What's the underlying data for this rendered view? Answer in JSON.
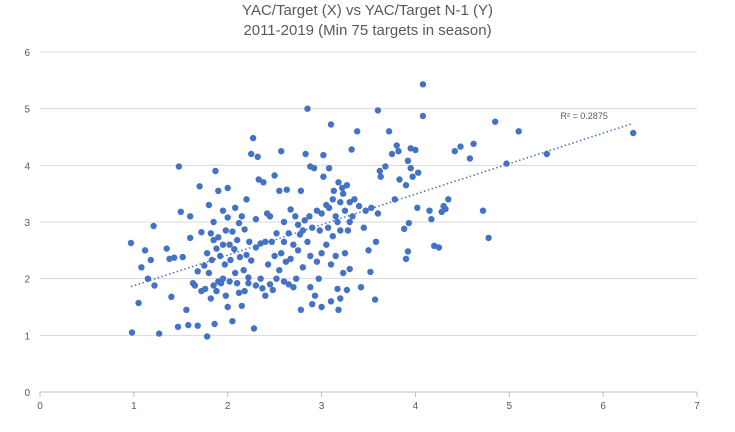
{
  "chart_data": {
    "type": "scatter",
    "title_lines": [
      "YAC/Target (X) vs YAC/Target N-1 (Y)",
      "2011-2019 (Min 75 targets in season)"
    ],
    "xlabel": "",
    "ylabel": "",
    "xlim": [
      0,
      7
    ],
    "ylim": [
      0,
      6
    ],
    "x_ticks": [
      0,
      1,
      2,
      3,
      4,
      5,
      6,
      7
    ],
    "y_ticks": [
      0,
      1,
      2,
      3,
      4,
      5,
      6
    ],
    "grid": "horizontal",
    "legend": "none",
    "marker_color": "#4472C4",
    "trendline": {
      "type": "linear",
      "style": "dotted",
      "start": [
        0.97,
        1.86
      ],
      "end": [
        6.3,
        4.73
      ],
      "r2_label": "R² = 0.2875"
    },
    "points": [
      [
        0.97,
        2.63
      ],
      [
        0.98,
        1.05
      ],
      [
        1.05,
        1.57
      ],
      [
        1.08,
        2.2
      ],
      [
        1.12,
        2.5
      ],
      [
        1.15,
        2.0
      ],
      [
        1.18,
        2.33
      ],
      [
        1.21,
        2.93
      ],
      [
        1.22,
        1.88
      ],
      [
        1.27,
        1.03
      ],
      [
        1.35,
        2.53
      ],
      [
        1.38,
        2.35
      ],
      [
        1.4,
        1.68
      ],
      [
        1.43,
        2.37
      ],
      [
        1.47,
        1.15
      ],
      [
        1.48,
        3.98
      ],
      [
        1.5,
        3.18
      ],
      [
        1.52,
        2.38
      ],
      [
        1.56,
        1.45
      ],
      [
        1.58,
        1.18
      ],
      [
        1.6,
        2.72
      ],
      [
        1.6,
        3.1
      ],
      [
        1.63,
        1.92
      ],
      [
        1.65,
        1.88
      ],
      [
        1.68,
        2.13
      ],
      [
        1.68,
        1.17
      ],
      [
        1.7,
        3.63
      ],
      [
        1.72,
        2.82
      ],
      [
        1.72,
        1.78
      ],
      [
        1.75,
        2.23
      ],
      [
        1.76,
        1.82
      ],
      [
        1.78,
        0.98
      ],
      [
        1.78,
        2.45
      ],
      [
        1.8,
        2.1
      ],
      [
        1.8,
        3.3
      ],
      [
        1.82,
        1.65
      ],
      [
        1.82,
        2.8
      ],
      [
        1.83,
        2.33
      ],
      [
        1.85,
        1.88
      ],
      [
        1.85,
        2.68
      ],
      [
        1.85,
        3.0
      ],
      [
        1.86,
        1.2
      ],
      [
        1.87,
        3.9
      ],
      [
        1.88,
        1.78
      ],
      [
        1.88,
        2.53
      ],
      [
        1.9,
        1.95
      ],
      [
        1.9,
        2.73
      ],
      [
        1.9,
        3.55
      ],
      [
        1.92,
        2.4
      ],
      [
        1.93,
        1.92
      ],
      [
        1.95,
        2.0
      ],
      [
        1.95,
        2.6
      ],
      [
        1.95,
        3.2
      ],
      [
        1.97,
        2.25
      ],
      [
        1.98,
        1.7
      ],
      [
        1.98,
        2.85
      ],
      [
        2.0,
        1.5
      ],
      [
        2.0,
        3.08
      ],
      [
        2.0,
        3.6
      ],
      [
        2.02,
        2.6
      ],
      [
        2.02,
        1.95
      ],
      [
        2.03,
        2.33
      ],
      [
        2.05,
        1.25
      ],
      [
        2.05,
        2.83
      ],
      [
        2.07,
        2.52
      ],
      [
        2.08,
        3.25
      ],
      [
        2.08,
        2.1
      ],
      [
        2.1,
        1.92
      ],
      [
        2.1,
        2.68
      ],
      [
        2.12,
        1.75
      ],
      [
        2.12,
        2.98
      ],
      [
        2.13,
        2.38
      ],
      [
        2.15,
        1.52
      ],
      [
        2.15,
        3.1
      ],
      [
        2.17,
        2.15
      ],
      [
        2.18,
        2.87
      ],
      [
        2.18,
        1.78
      ],
      [
        2.2,
        2.42
      ],
      [
        2.2,
        3.4
      ],
      [
        2.22,
        2.02
      ],
      [
        2.22,
        1.92
      ],
      [
        2.23,
        2.65
      ],
      [
        2.25,
        2.32
      ],
      [
        2.25,
        4.2
      ],
      [
        2.27,
        4.48
      ],
      [
        2.28,
        1.12
      ],
      [
        2.3,
        1.88
      ],
      [
        2.3,
        2.55
      ],
      [
        2.3,
        3.05
      ],
      [
        2.32,
        4.15
      ],
      [
        2.33,
        3.75
      ],
      [
        2.35,
        2.0
      ],
      [
        2.35,
        2.62
      ],
      [
        2.37,
        1.83
      ],
      [
        2.38,
        3.7
      ],
      [
        2.4,
        1.7
      ],
      [
        2.4,
        2.65
      ],
      [
        2.42,
        3.15
      ],
      [
        2.43,
        2.25
      ],
      [
        2.45,
        1.9
      ],
      [
        2.45,
        3.1
      ],
      [
        2.47,
        2.65
      ],
      [
        2.48,
        1.8
      ],
      [
        2.5,
        2.4
      ],
      [
        2.5,
        3.82
      ],
      [
        2.52,
        2.0
      ],
      [
        2.52,
        2.8
      ],
      [
        2.55,
        2.15
      ],
      [
        2.55,
        3.55
      ],
      [
        2.57,
        2.45
      ],
      [
        2.57,
        4.25
      ],
      [
        2.6,
        1.95
      ],
      [
        2.6,
        2.65
      ],
      [
        2.6,
        3.0
      ],
      [
        2.62,
        2.3
      ],
      [
        2.63,
        3.57
      ],
      [
        2.65,
        1.9
      ],
      [
        2.65,
        2.8
      ],
      [
        2.67,
        2.35
      ],
      [
        2.67,
        3.22
      ],
      [
        2.7,
        2.6
      ],
      [
        2.7,
        1.85
      ],
      [
        2.72,
        3.1
      ],
      [
        2.73,
        2.0
      ],
      [
        2.75,
        2.5
      ],
      [
        2.75,
        2.95
      ],
      [
        2.77,
        2.78
      ],
      [
        2.78,
        3.55
      ],
      [
        2.78,
        1.45
      ],
      [
        2.8,
        2.2
      ],
      [
        2.8,
        2.85
      ],
      [
        2.82,
        3.03
      ],
      [
        2.83,
        4.2
      ],
      [
        2.85,
        5.0
      ],
      [
        2.85,
        2.65
      ],
      [
        2.87,
        3.1
      ],
      [
        2.88,
        2.4
      ],
      [
        2.88,
        1.85
      ],
      [
        2.88,
        3.98
      ],
      [
        2.9,
        1.55
      ],
      [
        2.9,
        2.9
      ],
      [
        2.92,
        3.95
      ],
      [
        2.93,
        1.7
      ],
      [
        2.95,
        2.3
      ],
      [
        2.95,
        3.2
      ],
      [
        2.97,
        2.0
      ],
      [
        2.98,
        2.85
      ],
      [
        3.0,
        2.45
      ],
      [
        3.0,
        3.15
      ],
      [
        3.0,
        1.5
      ],
      [
        3.02,
        3.8
      ],
      [
        3.02,
        4.18
      ],
      [
        3.05,
        3.3
      ],
      [
        3.05,
        2.6
      ],
      [
        3.07,
        2.9
      ],
      [
        3.08,
        3.25
      ],
      [
        3.08,
        3.95
      ],
      [
        3.1,
        4.72
      ],
      [
        3.1,
        2.25
      ],
      [
        3.1,
        1.6
      ],
      [
        3.12,
        3.4
      ],
      [
        3.12,
        2.75
      ],
      [
        3.13,
        3.55
      ],
      [
        3.15,
        3.1
      ],
      [
        3.15,
        2.4
      ],
      [
        3.17,
        1.82
      ],
      [
        3.17,
        3.0
      ],
      [
        3.18,
        1.45
      ],
      [
        3.18,
        3.7
      ],
      [
        3.2,
        3.35
      ],
      [
        3.2,
        2.85
      ],
      [
        3.2,
        1.65
      ],
      [
        3.22,
        3.6
      ],
      [
        3.23,
        3.5
      ],
      [
        3.23,
        2.1
      ],
      [
        3.25,
        3.2
      ],
      [
        3.25,
        2.45
      ],
      [
        3.27,
        3.65
      ],
      [
        3.27,
        1.8
      ],
      [
        3.28,
        2.85
      ],
      [
        3.3,
        3.0
      ],
      [
        3.3,
        3.35
      ],
      [
        3.3,
        2.17
      ],
      [
        3.32,
        4.28
      ],
      [
        3.33,
        3.1
      ],
      [
        3.35,
        3.4
      ],
      [
        3.38,
        4.6
      ],
      [
        3.4,
        3.28
      ],
      [
        3.42,
        1.85
      ],
      [
        3.45,
        2.9
      ],
      [
        3.47,
        3.2
      ],
      [
        3.5,
        2.5
      ],
      [
        3.52,
        2.12
      ],
      [
        3.53,
        3.25
      ],
      [
        3.57,
        1.63
      ],
      [
        3.58,
        2.65
      ],
      [
        3.6,
        3.15
      ],
      [
        3.6,
        4.97
      ],
      [
        3.62,
        3.9
      ],
      [
        3.63,
        3.8
      ],
      [
        3.68,
        3.98
      ],
      [
        3.72,
        4.6
      ],
      [
        3.75,
        4.2
      ],
      [
        3.78,
        3.4
      ],
      [
        3.8,
        4.35
      ],
      [
        3.82,
        4.25
      ],
      [
        3.83,
        3.75
      ],
      [
        3.88,
        2.88
      ],
      [
        3.9,
        3.65
      ],
      [
        3.9,
        2.35
      ],
      [
        3.92,
        2.48
      ],
      [
        3.92,
        4.08
      ],
      [
        3.93,
        2.98
      ],
      [
        3.95,
        4.3
      ],
      [
        3.95,
        3.95
      ],
      [
        3.97,
        3.8
      ],
      [
        4.0,
        4.27
      ],
      [
        4.02,
        3.25
      ],
      [
        4.03,
        3.87
      ],
      [
        4.08,
        5.43
      ],
      [
        4.08,
        4.87
      ],
      [
        4.15,
        3.2
      ],
      [
        4.17,
        3.05
      ],
      [
        4.2,
        2.58
      ],
      [
        4.25,
        2.55
      ],
      [
        4.28,
        3.18
      ],
      [
        4.3,
        3.28
      ],
      [
        4.32,
        3.23
      ],
      [
        4.35,
        3.4
      ],
      [
        4.42,
        4.25
      ],
      [
        4.48,
        4.33
      ],
      [
        4.58,
        4.12
      ],
      [
        4.62,
        4.38
      ],
      [
        4.72,
        3.2
      ],
      [
        4.78,
        2.72
      ],
      [
        4.85,
        4.77
      ],
      [
        4.97,
        4.03
      ],
      [
        5.1,
        4.6
      ],
      [
        5.4,
        4.2
      ],
      [
        6.32,
        4.57
      ]
    ]
  }
}
